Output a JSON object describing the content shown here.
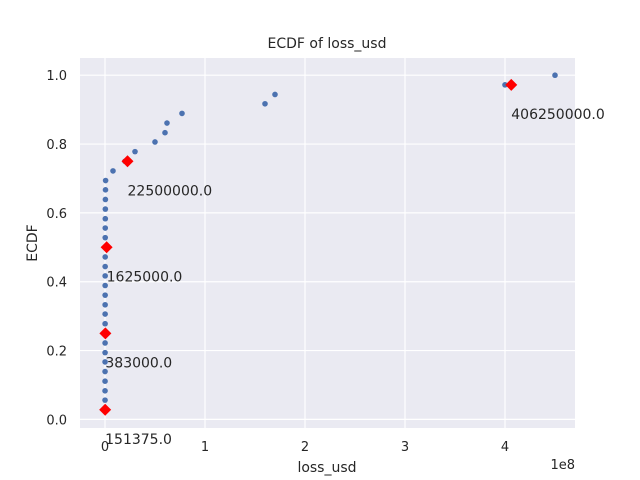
{
  "chart_data": {
    "type": "scatter",
    "title": "ECDF of loss_usd",
    "xlabel": "loss_usd",
    "ylabel": "ECDF",
    "x_scale_label": "1e8",
    "xlim": [
      -0.25,
      4.7
    ],
    "ylim": [
      -0.025,
      1.05
    ],
    "x_ticks": [
      0,
      1,
      2,
      3,
      4
    ],
    "x_tick_labels": [
      "0",
      "1",
      "2",
      "3",
      "4"
    ],
    "y_ticks": [
      0.0,
      0.2,
      0.4,
      0.6,
      0.8,
      1.0
    ],
    "y_tick_labels": [
      "0.0",
      "0.2",
      "0.4",
      "0.6",
      "0.8",
      "1.0"
    ],
    "grid": true,
    "colors": {
      "background": "#eaeaf2",
      "grid": "#ffffff",
      "points": "#4c72b0",
      "quantiles": "#ff0000"
    },
    "ecdf_points": {
      "x_unit_note": "x values in units of 1e8 USD",
      "points": [
        {
          "x": 0.0002,
          "y": 0.028
        },
        {
          "x": 0.0003,
          "y": 0.056
        },
        {
          "x": 0.0004,
          "y": 0.083
        },
        {
          "x": 0.0005,
          "y": 0.111
        },
        {
          "x": 0.0006,
          "y": 0.139
        },
        {
          "x": 0.0007,
          "y": 0.167
        },
        {
          "x": 0.0008,
          "y": 0.194
        },
        {
          "x": 0.0009,
          "y": 0.222
        },
        {
          "x": 0.001,
          "y": 0.25
        },
        {
          "x": 0.0011,
          "y": 0.278
        },
        {
          "x": 0.0012,
          "y": 0.306
        },
        {
          "x": 0.0013,
          "y": 0.333
        },
        {
          "x": 0.0014,
          "y": 0.361
        },
        {
          "x": 0.0015,
          "y": 0.389
        },
        {
          "x": 0.0016,
          "y": 0.417
        },
        {
          "x": 0.0017,
          "y": 0.444
        },
        {
          "x": 0.0019,
          "y": 0.472
        },
        {
          "x": 0.002,
          "y": 0.5
        },
        {
          "x": 0.0022,
          "y": 0.528
        },
        {
          "x": 0.0025,
          "y": 0.556
        },
        {
          "x": 0.003,
          "y": 0.583
        },
        {
          "x": 0.0035,
          "y": 0.611
        },
        {
          "x": 0.004,
          "y": 0.639
        },
        {
          "x": 0.005,
          "y": 0.667
        },
        {
          "x": 0.006,
          "y": 0.694
        },
        {
          "x": 0.08,
          "y": 0.722
        },
        {
          "x": 0.2,
          "y": 0.75
        },
        {
          "x": 0.3,
          "y": 0.778
        },
        {
          "x": 0.5,
          "y": 0.806
        },
        {
          "x": 0.6,
          "y": 0.833
        },
        {
          "x": 0.62,
          "y": 0.861
        },
        {
          "x": 0.77,
          "y": 0.889
        },
        {
          "x": 1.6,
          "y": 0.917
        },
        {
          "x": 1.7,
          "y": 0.944
        },
        {
          "x": 4.0,
          "y": 0.972
        },
        {
          "x": 4.5,
          "y": 1.0
        }
      ]
    },
    "quantile_markers": [
      {
        "x": 0.00151375,
        "y": 0.028,
        "label": "151375.0"
      },
      {
        "x": 0.00383,
        "y": 0.25,
        "label": "383000.0"
      },
      {
        "x": 0.01625,
        "y": 0.5,
        "label": "1625000.0"
      },
      {
        "x": 0.225,
        "y": 0.75,
        "label": "22500000.0"
      },
      {
        "x": 4.0625,
        "y": 0.972,
        "label": "406250000.0"
      }
    ]
  }
}
